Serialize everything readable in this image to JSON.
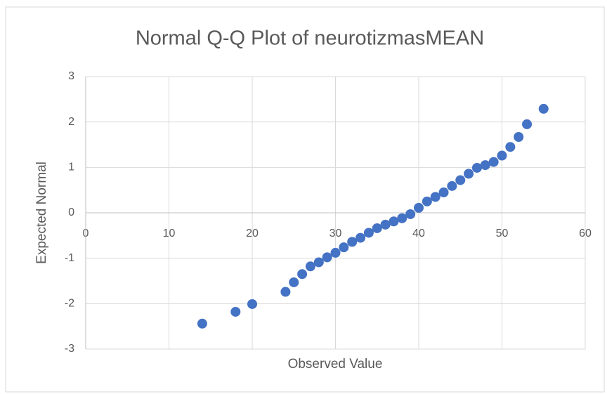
{
  "chart_data": {
    "type": "scatter",
    "title": "Normal Q-Q Plot of neurotizmasMEAN",
    "x_label": "Observed Value",
    "y_label": "Expected Normal",
    "series": [
      {
        "name": "neurotizmasMEAN",
        "color": "#4472c4",
        "x": [
          14,
          18,
          20,
          24,
          25,
          26,
          27,
          28,
          29,
          30,
          31,
          32,
          33,
          34,
          35,
          36,
          37,
          38,
          39,
          40,
          41,
          42,
          43,
          44,
          45,
          46,
          47,
          48,
          49,
          50,
          51,
          52,
          53,
          55
        ],
        "values": [
          -2.44,
          -2.18,
          -2.01,
          -1.74,
          -1.53,
          -1.35,
          -1.18,
          -1.09,
          -0.98,
          -0.88,
          -0.76,
          -0.64,
          -0.55,
          -0.44,
          -0.34,
          -0.26,
          -0.19,
          -0.12,
          -0.03,
          0.11,
          0.25,
          0.35,
          0.45,
          0.59,
          0.72,
          0.86,
          0.99,
          1.05,
          1.12,
          1.26,
          1.45,
          1.67,
          1.95,
          2.29
        ]
      }
    ],
    "xlim": [
      0,
      60
    ],
    "xticks": [
      0,
      10,
      20,
      30,
      40,
      50,
      60
    ],
    "ylim": [
      -3,
      3
    ],
    "yticks": [
      -3,
      -2,
      -1,
      0,
      1,
      2,
      3
    ],
    "grid": true
  }
}
